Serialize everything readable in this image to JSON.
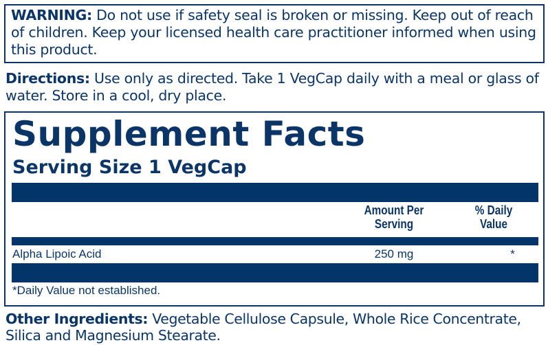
{
  "warning": {
    "label": "WARNING:",
    "text": " Do not use if safety seal is broken or missing. Keep out of reach of children. Keep your licensed health care practitioner informed when using this product."
  },
  "directions": {
    "label": "Directions:",
    "text": " Use only as directed. Take 1 VegCap daily with a meal or glass of water. Store in a cool, dry place."
  },
  "facts": {
    "title": "Supplement Facts",
    "serving_size": "Serving Size 1 VegCap",
    "headers": {
      "amount": "Amount Per Serving",
      "daily_value": "% Daily Value"
    },
    "rows": [
      {
        "name": "Alpha Lipoic Acid",
        "amount": "250 mg",
        "daily_value": "*"
      }
    ],
    "footnote": "*Daily Value not established."
  },
  "other_ingredients": {
    "label": "Other Ingredients:",
    "text": " Vegetable Cellulose Capsule, Whole Rice Concentrate, Silica and Magnesium Stearate."
  },
  "colors": {
    "navy": "#0b3567"
  }
}
